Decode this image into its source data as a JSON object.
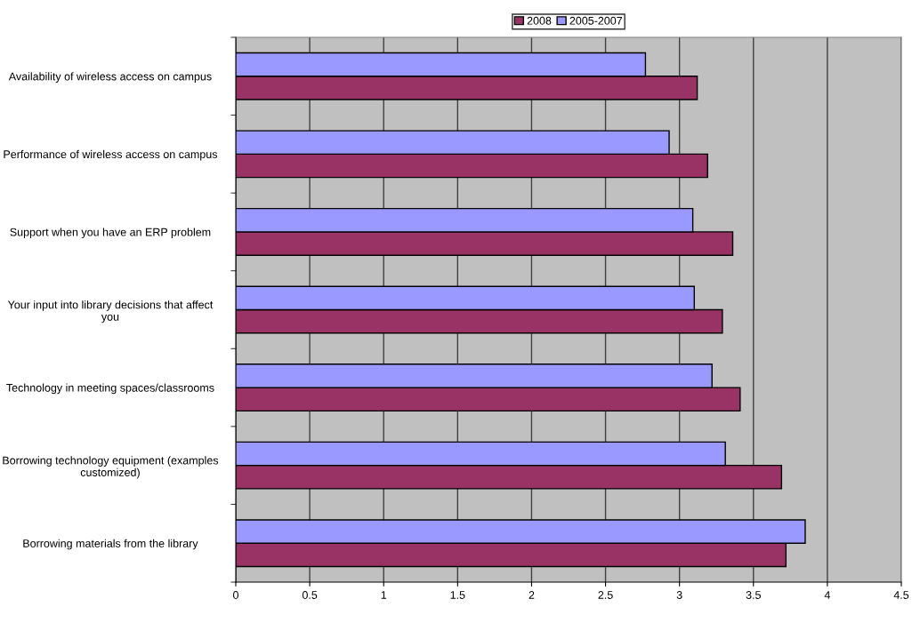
{
  "chart_data": {
    "type": "bar",
    "orientation": "horizontal",
    "categories": [
      "Availability of wireless access on campus",
      "Performance of wireless access on campus",
      "Support when you have an ERP problem",
      "Your input into library decisions that affect you",
      "Technology in meeting spaces/classrooms",
      "Borrowing technology equipment (examples customized)",
      "Borrowing materials from the library"
    ],
    "series": [
      {
        "name": "2008",
        "color": "#993366",
        "values": [
          3.12,
          3.19,
          3.36,
          3.29,
          3.41,
          3.69,
          3.72
        ]
      },
      {
        "name": "2005-2007",
        "color": "#9999ff",
        "values": [
          2.77,
          2.93,
          3.09,
          3.1,
          3.22,
          3.31,
          3.85
        ]
      }
    ],
    "xlim": [
      0,
      4.5
    ],
    "xticks": [
      0,
      0.5,
      1,
      1.5,
      2,
      2.5,
      3,
      3.5,
      4,
      4.5
    ],
    "grid": "x",
    "legend": "top"
  }
}
